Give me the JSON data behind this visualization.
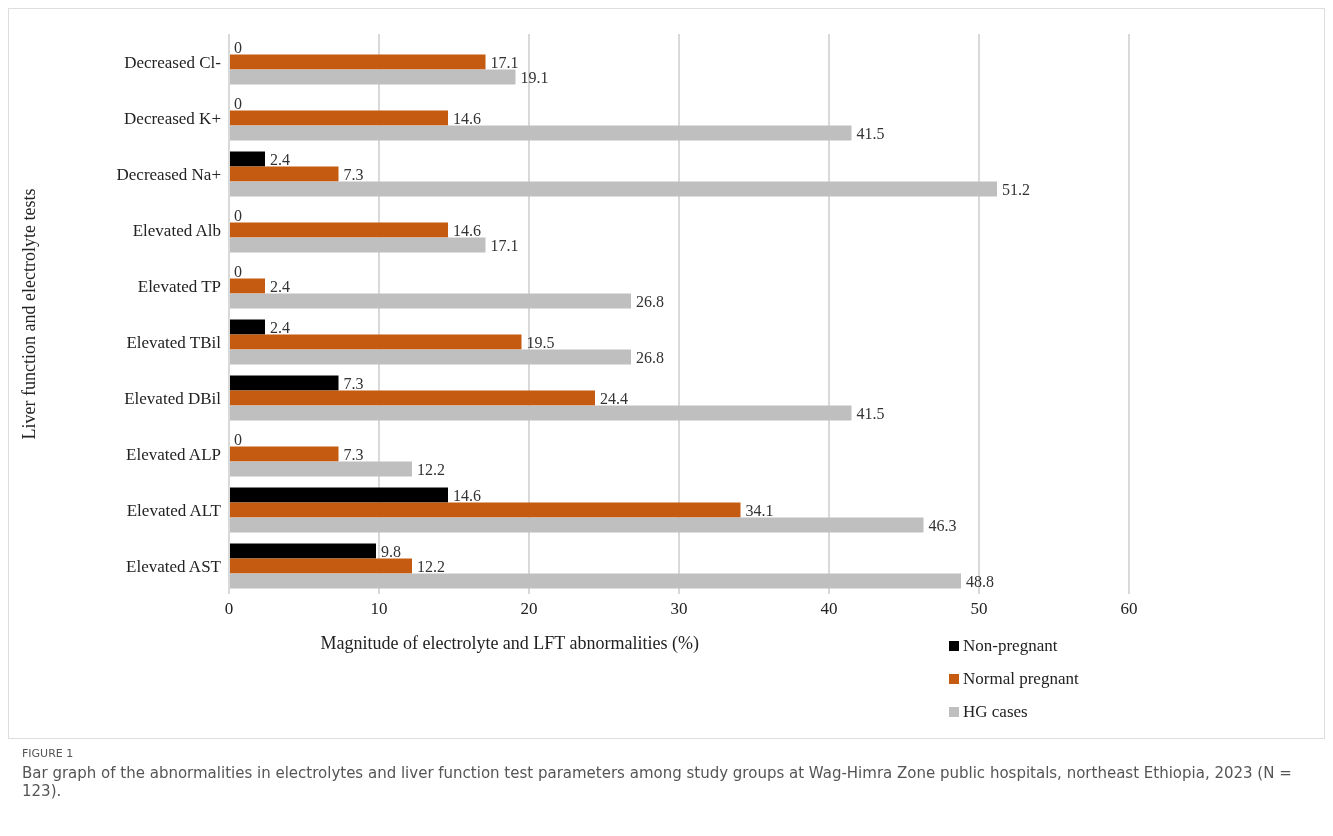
{
  "chart_data": {
    "type": "bar",
    "orientation": "horizontal",
    "xlabel": "Magnitude of electrolyte and LFT abnormalities (%)",
    "ylabel": "Liver function and electrolyte tests",
    "categories": [
      "Decreased Cl-",
      "Decreased K+",
      "Decreased Na+",
      "Elevated Alb",
      "Elevated TP",
      "Elevated TBil",
      "Elevated DBil",
      "Elevated ALP",
      "Elevated ALT",
      "Elevated AST"
    ],
    "series": [
      {
        "name": "Non-pregnant",
        "color": "#000000",
        "values": [
          0,
          0,
          2.4,
          0,
          0,
          2.4,
          7.3,
          0,
          14.6,
          9.8
        ]
      },
      {
        "name": "Normal pregnant",
        "color": "#c55a11",
        "values": [
          17.1,
          14.6,
          7.3,
          14.6,
          2.4,
          19.5,
          24.4,
          7.3,
          34.1,
          12.2
        ]
      },
      {
        "name": "HG cases",
        "color": "#bfbfbf",
        "values": [
          19.1,
          41.5,
          51.2,
          17.1,
          26.8,
          26.8,
          41.5,
          12.2,
          46.3,
          48.8
        ]
      }
    ],
    "xlim": [
      0,
      60
    ],
    "xticks": [
      0,
      10,
      20,
      30,
      40,
      50,
      60
    ],
    "grid": "x",
    "legend": "bottom right",
    "data_labels": true,
    "annotations": [
      "FIGURE 1",
      "Bar graph of the abnormalities in electrolytes and liver function test parameters among study groups at Wag-Himra Zone public hospitals, northeast Ethiopia, 2023 (N = 123)."
    ]
  }
}
